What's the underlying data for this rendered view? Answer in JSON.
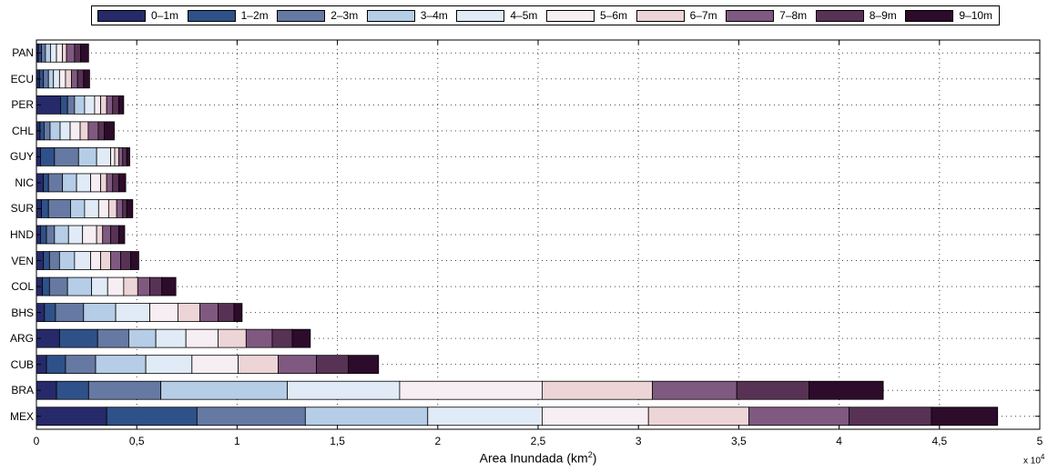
{
  "chart_data": {
    "type": "bar",
    "orientation": "horizontal",
    "stacked": true,
    "title": "",
    "xlabel": "Area Inundada (km",
    "xlabel_sup": "2",
    "xlabel_close": ")",
    "ylabel": "",
    "x_multiplier": "x 10",
    "x_multiplier_sup": "4",
    "xlim": [
      0,
      50000
    ],
    "xticks": [
      0,
      5000,
      10000,
      15000,
      20000,
      25000,
      30000,
      35000,
      40000,
      45000,
      50000
    ],
    "xtick_labels": [
      "0",
      "0,5",
      "1",
      "1,5",
      "2",
      "2,5",
      "3",
      "3,5",
      "4",
      "4,5",
      "5"
    ],
    "grid": "dotted",
    "legend_position": "top",
    "categories": [
      "PAN",
      "ECU",
      "PER",
      "CHL",
      "GUY",
      "NIC",
      "SUR",
      "HND",
      "VEN",
      "COL",
      "BHS",
      "ARG",
      "CUB",
      "BRA",
      "MEX"
    ],
    "series": [
      {
        "name": "0–1m",
        "color": "#272a6a",
        "values": [
          100,
          150,
          1200,
          180,
          200,
          350,
          250,
          200,
          350,
          300,
          400,
          1150,
          500,
          1000,
          3500
        ]
      },
      {
        "name": "1–2m",
        "color": "#2f5189",
        "values": [
          150,
          200,
          350,
          200,
          700,
          250,
          350,
          300,
          300,
          350,
          550,
          1900,
          950,
          1600,
          4500
        ]
      },
      {
        "name": "2–3m",
        "color": "#6679a3",
        "values": [
          200,
          250,
          350,
          300,
          1200,
          700,
          1100,
          400,
          500,
          900,
          1400,
          1550,
          1500,
          3600,
          5400
        ]
      },
      {
        "name": "3–4m",
        "color": "#b5cde6",
        "values": [
          250,
          250,
          500,
          500,
          900,
          700,
          700,
          700,
          750,
          1200,
          1600,
          1350,
          2500,
          6300,
          6100
        ]
      },
      {
        "name": "4–5m",
        "color": "#e1ebf7",
        "values": [
          300,
          300,
          500,
          500,
          700,
          700,
          700,
          700,
          800,
          800,
          1700,
          1500,
          2300,
          5600,
          5700
        ]
      },
      {
        "name": "5–6m",
        "color": "#f6eef2",
        "values": [
          300,
          300,
          300,
          500,
          200,
          500,
          500,
          700,
          500,
          800,
          1400,
          1600,
          2300,
          7100,
          5300
        ]
      },
      {
        "name": "6–7m",
        "color": "#edd5d7",
        "values": [
          200,
          300,
          300,
          400,
          200,
          300,
          400,
          300,
          500,
          700,
          1100,
          1400,
          2000,
          5500,
          5000
        ]
      },
      {
        "name": "7–8m",
        "color": "#805980",
        "values": [
          400,
          300,
          300,
          500,
          200,
          300,
          300,
          400,
          500,
          600,
          900,
          1300,
          1900,
          4200,
          5000
        ]
      },
      {
        "name": "8–9m",
        "color": "#583254",
        "values": [
          300,
          300,
          300,
          300,
          200,
          300,
          200,
          400,
          500,
          600,
          800,
          1000,
          1600,
          3600,
          4100
        ]
      },
      {
        "name": "9–10m",
        "color": "#2d0b2b",
        "values": [
          400,
          300,
          250,
          500,
          150,
          350,
          300,
          300,
          400,
          700,
          400,
          900,
          1500,
          3700,
          3300
        ]
      }
    ]
  }
}
